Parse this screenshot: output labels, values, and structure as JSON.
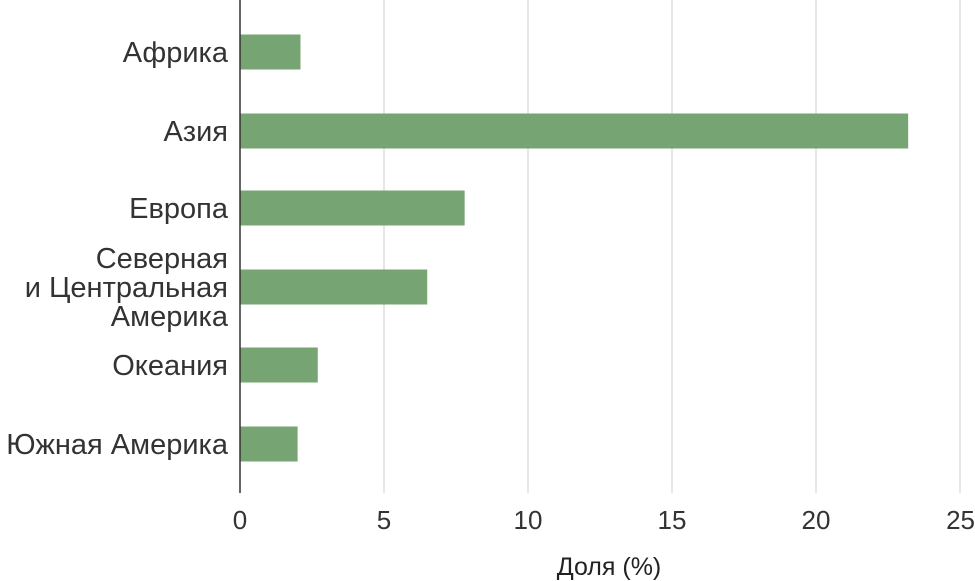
{
  "chart_data": {
    "type": "bar",
    "orientation": "horizontal",
    "categories": [
      "Африка",
      "Азия",
      "Европа",
      "Северная и Центральная Америка",
      "Океания",
      "Южная Америка"
    ],
    "category_label_lines": [
      [
        "Африка"
      ],
      [
        "Азия"
      ],
      [
        "Европа"
      ],
      [
        "Северная",
        "и Центральная",
        "Америка"
      ],
      [
        "Океания"
      ],
      [
        "Южная Америка"
      ]
    ],
    "values": [
      2.1,
      23.2,
      7.8,
      6.5,
      2.7,
      2.0
    ],
    "xlabel": "Доля (%)",
    "ylabel": "",
    "title": "",
    "xlim": [
      0,
      25
    ],
    "xticks": [
      0,
      5,
      10,
      15,
      20,
      25
    ],
    "xtick_labels": [
      "0",
      "5",
      "10",
      "15",
      "20",
      "25"
    ],
    "grid": "vertical",
    "legend": "none",
    "colors": {
      "bar": "#76a472",
      "grid": "#cccccc",
      "axis": "#333333"
    }
  }
}
